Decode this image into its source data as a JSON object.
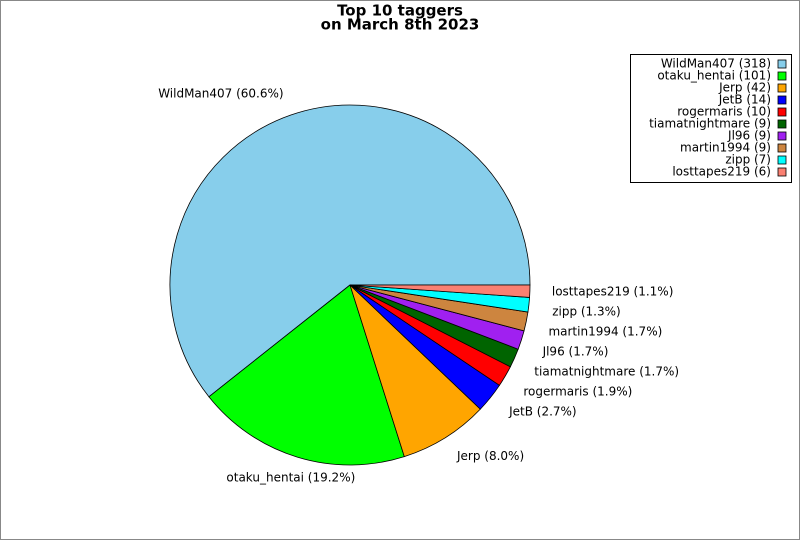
{
  "chart_data": {
    "type": "pie",
    "title": [
      "Top 10 taggers",
      "on March 8th 2023"
    ],
    "categories": [
      "WildMan407 (318)",
      "otaku_hentai (101)",
      "Jerp (42)",
      "JetB (14)",
      "rogermaris (10)",
      "tiamatnightmare (9)",
      "Jl96 (9)",
      "martin1994 (9)",
      "zipp (7)",
      "losttapes219 (6)"
    ],
    "values": [
      60.6,
      19.2,
      8.0,
      2.7,
      1.9,
      1.7,
      1.7,
      1.7,
      1.3,
      1.1
    ],
    "value_labels": [
      "WildMan407 (60.6%)",
      "otaku_hentai (19.2%)",
      "Jerp (8.0%)",
      "JetB (2.7%)",
      "rogermaris (1.9%)",
      "tiamatnightmare (1.7%)",
      "Jl96 (1.7%)",
      "martin1994 (1.7%)",
      "zipp (1.3%)",
      "losttapes219 (1.1%)"
    ],
    "colors": [
      "#87ceeb",
      "#00ff00",
      "#ffa500",
      "#0000ff",
      "#ff0000",
      "#006400",
      "#a020f0",
      "#cd853f",
      "#00ffff",
      "#fa8072"
    ],
    "legend": "upper right"
  }
}
